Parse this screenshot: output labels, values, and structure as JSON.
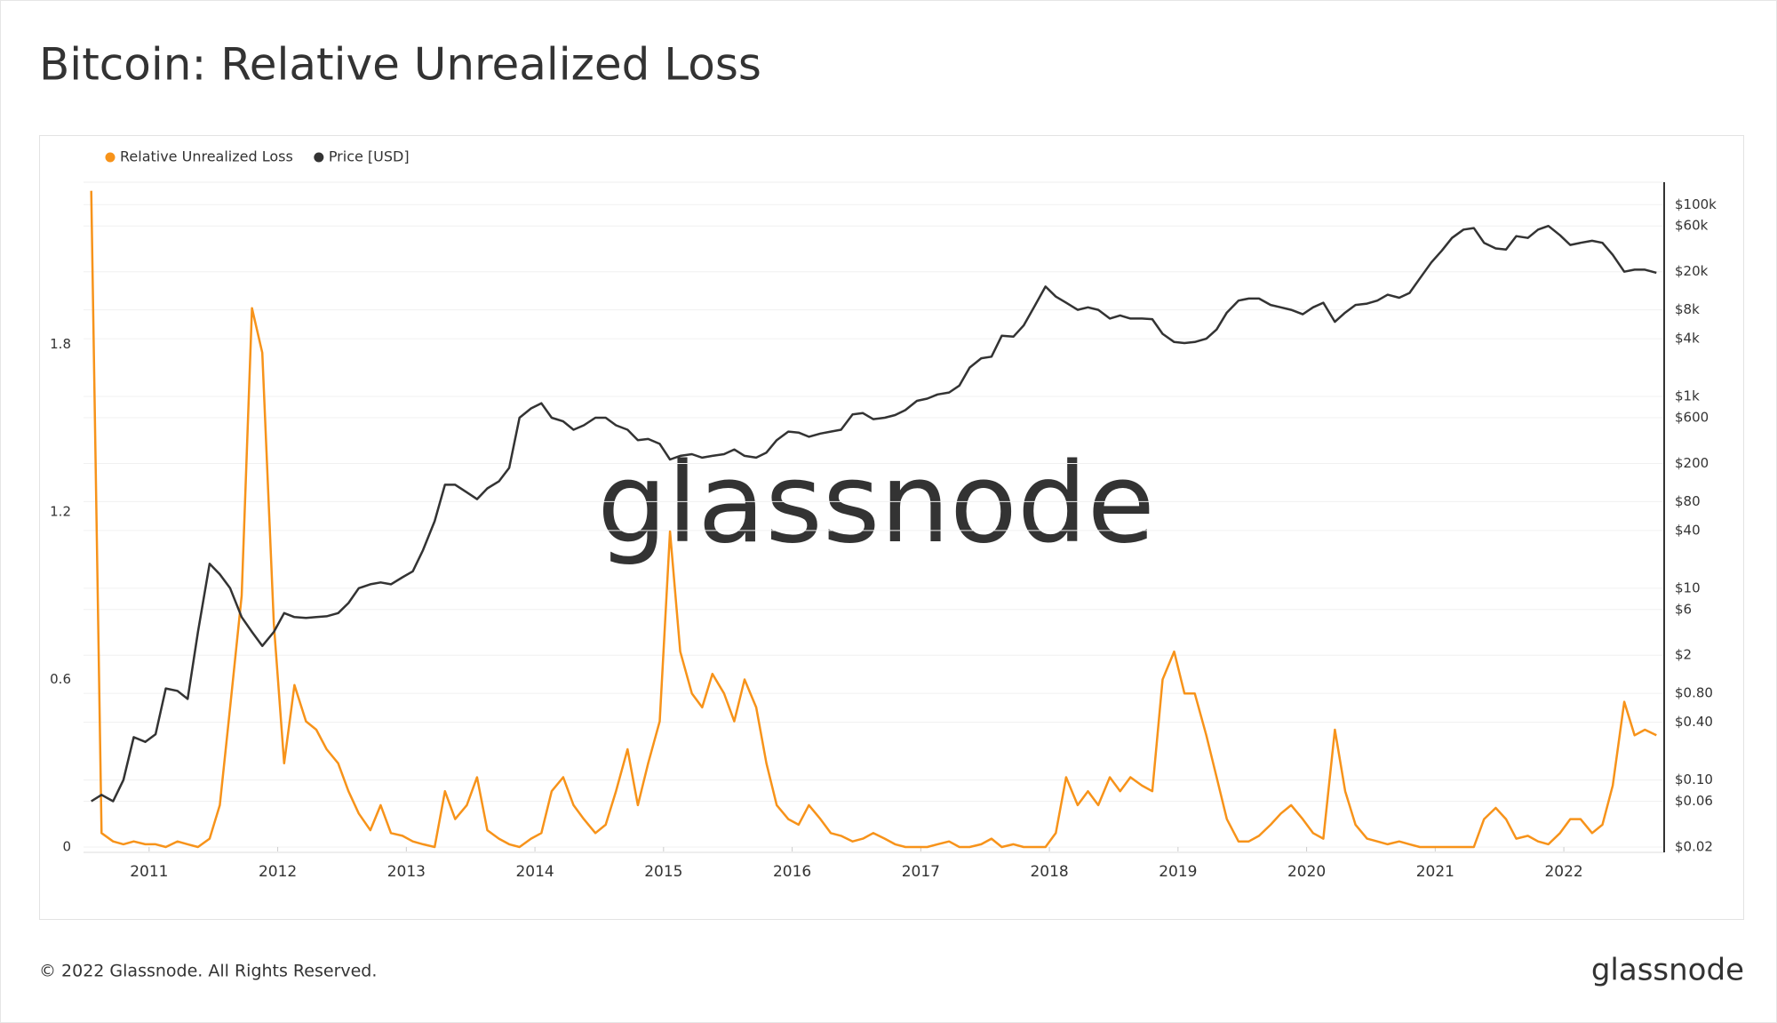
{
  "chart_data": {
    "type": "line",
    "title": "Bitcoin: Relative Unrealized Loss",
    "watermark": "glassnode",
    "footer": "© 2022 Glassnode. All Rights Reserved.",
    "logo": "glassnode",
    "x": [
      2010.55,
      2010.63,
      2010.72,
      2010.8,
      2010.88,
      2010.97,
      2011.05,
      2011.13,
      2011.22,
      2011.3,
      2011.38,
      2011.47,
      2011.55,
      2011.63,
      2011.72,
      2011.8,
      2011.88,
      2011.97,
      2012.05,
      2012.13,
      2012.22,
      2012.3,
      2012.38,
      2012.47,
      2012.55,
      2012.63,
      2012.72,
      2012.8,
      2012.88,
      2012.97,
      2013.05,
      2013.13,
      2013.22,
      2013.3,
      2013.38,
      2013.47,
      2013.55,
      2013.63,
      2013.72,
      2013.8,
      2013.88,
      2013.97,
      2014.05,
      2014.13,
      2014.22,
      2014.3,
      2014.38,
      2014.47,
      2014.55,
      2014.63,
      2014.72,
      2014.8,
      2014.88,
      2014.97,
      2015.05,
      2015.13,
      2015.22,
      2015.3,
      2015.38,
      2015.47,
      2015.55,
      2015.63,
      2015.72,
      2015.8,
      2015.88,
      2015.97,
      2016.05,
      2016.13,
      2016.22,
      2016.3,
      2016.38,
      2016.47,
      2016.55,
      2016.63,
      2016.72,
      2016.8,
      2016.88,
      2016.97,
      2017.05,
      2017.13,
      2017.22,
      2017.3,
      2017.38,
      2017.47,
      2017.55,
      2017.63,
      2017.72,
      2017.8,
      2017.88,
      2017.97,
      2018.05,
      2018.13,
      2018.22,
      2018.3,
      2018.38,
      2018.47,
      2018.55,
      2018.63,
      2018.72,
      2018.8,
      2018.88,
      2018.97,
      2019.05,
      2019.13,
      2019.22,
      2019.3,
      2019.38,
      2019.47,
      2019.55,
      2019.63,
      2019.72,
      2019.8,
      2019.88,
      2019.97,
      2020.05,
      2020.13,
      2020.22,
      2020.3,
      2020.38,
      2020.47,
      2020.55,
      2020.63,
      2020.72,
      2020.8,
      2020.88,
      2020.97,
      2021.05,
      2021.13,
      2021.22,
      2021.3,
      2021.38,
      2021.47,
      2021.55,
      2021.63,
      2021.72,
      2021.8,
      2021.88,
      2021.97,
      2022.05,
      2022.13,
      2022.22,
      2022.3,
      2022.38,
      2022.47,
      2022.55,
      2022.63,
      2022.72
    ],
    "series": [
      {
        "name": "Relative Unrealized Loss",
        "color": "#f7931a",
        "axis": "y",
        "values": [
          2.35,
          0.05,
          0.02,
          0.01,
          0.02,
          0.01,
          0.01,
          0,
          0.02,
          0.01,
          0,
          0.03,
          0.15,
          0.5,
          0.9,
          1.93,
          1.77,
          0.8,
          0.3,
          0.58,
          0.45,
          0.42,
          0.35,
          0.3,
          0.2,
          0.12,
          0.06,
          0.15,
          0.05,
          0.04,
          0.02,
          0.01,
          0,
          0.2,
          0.1,
          0.15,
          0.25,
          0.06,
          0.03,
          0.01,
          0,
          0.03,
          0.05,
          0.2,
          0.25,
          0.15,
          0.1,
          0.05,
          0.08,
          0.2,
          0.35,
          0.15,
          0.3,
          0.45,
          1.13,
          0.7,
          0.55,
          0.5,
          0.62,
          0.55,
          0.45,
          0.6,
          0.5,
          0.3,
          0.15,
          0.1,
          0.08,
          0.15,
          0.1,
          0.05,
          0.04,
          0.02,
          0.03,
          0.05,
          0.03,
          0.01,
          0,
          0,
          0,
          0.01,
          0.02,
          0,
          0,
          0.01,
          0.03,
          0,
          0.01,
          0,
          0,
          0,
          0.05,
          0.25,
          0.15,
          0.2,
          0.15,
          0.25,
          0.2,
          0.25,
          0.22,
          0.2,
          0.6,
          0.7,
          0.55,
          0.55,
          0.4,
          0.25,
          0.1,
          0.02,
          0.02,
          0.04,
          0.08,
          0.12,
          0.15,
          0.1,
          0.05,
          0.03,
          0.42,
          0.2,
          0.08,
          0.03,
          0.02,
          0.01,
          0.02,
          0.01,
          0,
          0,
          0,
          0,
          0,
          0,
          0.1,
          0.14,
          0.1,
          0.03,
          0.04,
          0.02,
          0.01,
          0.05,
          0.1,
          0.1,
          0.05,
          0.08,
          0.22,
          0.52,
          0.4,
          0.42,
          0.4
        ]
      },
      {
        "name": "Price [USD]",
        "color": "#333333",
        "axis": "y2",
        "values": [
          0.06,
          0.07,
          0.06,
          0.1,
          0.28,
          0.25,
          0.3,
          0.9,
          0.85,
          0.7,
          3.5,
          18,
          14,
          10,
          5,
          3.5,
          2.5,
          3.5,
          5.5,
          5,
          4.9,
          5,
          5.1,
          5.5,
          7,
          10,
          11,
          11.5,
          11,
          13,
          15,
          25,
          50,
          120,
          120,
          100,
          85,
          110,
          130,
          180,
          600,
          750,
          850,
          600,
          550,
          450,
          500,
          600,
          600,
          500,
          450,
          350,
          360,
          320,
          220,
          240,
          250,
          230,
          240,
          250,
          280,
          240,
          230,
          260,
          350,
          430,
          420,
          380,
          410,
          430,
          450,
          650,
          670,
          580,
          600,
          640,
          720,
          900,
          950,
          1050,
          1100,
          1300,
          2000,
          2500,
          2600,
          4300,
          4200,
          5500,
          8500,
          14000,
          11000,
          9500,
          8000,
          8500,
          8000,
          6500,
          7000,
          6500,
          6500,
          6400,
          4500,
          3700,
          3600,
          3700,
          4000,
          5000,
          7500,
          10000,
          10500,
          10500,
          9000,
          8500,
          8000,
          7200,
          8500,
          9500,
          6000,
          7500,
          9000,
          9300,
          10000,
          11500,
          10700,
          12000,
          17000,
          25000,
          33000,
          45000,
          55000,
          57000,
          40000,
          35000,
          34000,
          47000,
          45000,
          55000,
          60000,
          48000,
          38000,
          40000,
          42000,
          40000,
          30000,
          20000,
          21000,
          21000,
          19500
        ]
      }
    ],
    "xlim": [
      2010.49,
      2022.78
    ],
    "xticks": [
      2011,
      2012,
      2013,
      2014,
      2015,
      2016,
      2017,
      2018,
      2019,
      2020,
      2021,
      2022
    ],
    "ylim": [
      0,
      2.4
    ],
    "yticks": [
      0,
      0.6,
      1.2,
      1.8
    ],
    "y2lim": [
      0.02,
      195000
    ],
    "y2log": true,
    "y2ticks": [
      {
        "value": 100000,
        "label": "$100k"
      },
      {
        "value": 60000,
        "label": "$60k"
      },
      {
        "value": 20000,
        "label": "$20k"
      },
      {
        "value": 8000,
        "label": "$8k"
      },
      {
        "value": 4000,
        "label": "$4k"
      },
      {
        "value": 1000,
        "label": "$1k"
      },
      {
        "value": 600,
        "label": "$600"
      },
      {
        "value": 200,
        "label": "$200"
      },
      {
        "value": 80,
        "label": "$80"
      },
      {
        "value": 40,
        "label": "$40"
      },
      {
        "value": 10,
        "label": "$10"
      },
      {
        "value": 6,
        "label": "$6"
      },
      {
        "value": 2,
        "label": "$2"
      },
      {
        "value": 0.8,
        "label": "$0.80"
      },
      {
        "value": 0.4,
        "label": "$0.40"
      },
      {
        "value": 0.1,
        "label": "$0.10"
      },
      {
        "value": 0.06,
        "label": "$0.06"
      },
      {
        "value": 0.02,
        "label": "$0.02"
      }
    ],
    "grid": true,
    "legend": "top-left"
  }
}
